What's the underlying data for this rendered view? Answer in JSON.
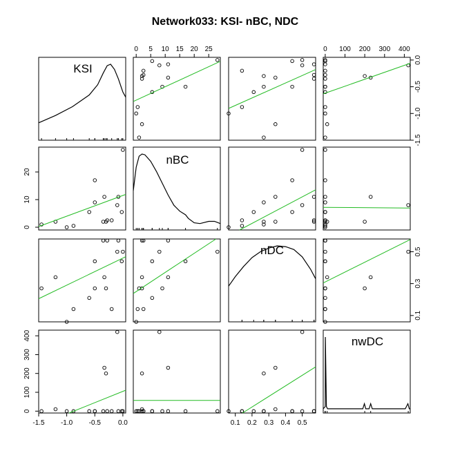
{
  "chart_data": {
    "type": "scatter",
    "subtype": "scatterplot-matrix",
    "title": "Network033: KSI- nBC, NDC",
    "variables": [
      "KSI",
      "nBC",
      "nDC",
      "nwDC"
    ],
    "ranges": {
      "KSI": [
        -1.5,
        0.05
      ],
      "nBC": [
        -1,
        29
      ],
      "nDC": [
        0.06,
        0.58
      ],
      "nwDC": [
        -10,
        430
      ]
    },
    "ticks": {
      "KSI": {
        "values": [
          -1.5,
          -1.0,
          -0.5,
          0.0
        ],
        "labels": [
          "-1.5",
          "-1.0",
          "-0.5",
          "0.0"
        ]
      },
      "nBC": {
        "values": [
          0,
          10,
          20
        ],
        "labels": [
          "0",
          "10",
          "20"
        ]
      },
      "nBC_top": {
        "values": [
          0,
          5,
          10,
          15,
          20,
          25
        ],
        "labels": [
          "0",
          "5",
          "10",
          "15",
          "20",
          "25"
        ]
      },
      "nDC": {
        "values": [
          0.1,
          0.3,
          0.5
        ],
        "labels": [
          "0.1",
          "0.3",
          "0.5"
        ]
      },
      "nDC_bottom": {
        "values": [
          0.1,
          0.2,
          0.3,
          0.4,
          0.5
        ],
        "labels": [
          "0.1",
          "0.2",
          "0.3",
          "0.4",
          "0.5"
        ]
      },
      "nwDC": {
        "values": [
          0,
          100,
          200,
          300,
          400
        ],
        "labels": [
          "0",
          "100",
          "200",
          "300",
          "400"
        ]
      },
      "KSI_right": {
        "values": [
          0.0,
          -0.5,
          -1.0,
          -1.5
        ],
        "labels": [
          "0.0",
          "-0.5",
          "-1.0",
          "-1.5"
        ]
      }
    },
    "points": {
      "KSI": [
        -1.45,
        -1.2,
        -1.0,
        -0.88,
        -0.6,
        -0.5,
        -0.5,
        -0.35,
        -0.33,
        -0.3,
        -0.28,
        -0.2,
        -0.1,
        -0.08,
        -0.02,
        0.0
      ],
      "nBC": [
        1,
        2,
        0,
        0.5,
        5.5,
        17,
        9,
        2,
        11,
        2,
        2.5,
        2.5,
        8,
        11,
        5.5,
        28
      ],
      "nDC": [
        0.27,
        0.34,
        0.06,
        0.14,
        0.21,
        0.44,
        0.27,
        0.57,
        0.34,
        0.27,
        0.57,
        0.14,
        0.5,
        0.57,
        0.44,
        0.5
      ],
      "nwDC": [
        0,
        10,
        0,
        0,
        0,
        0,
        0,
        0,
        230,
        200,
        0,
        0,
        420,
        0,
        0,
        0
      ]
    },
    "fit_lines": {
      "nBC~KSI": {
        "intercept": 11.5,
        "slope": 7.5
      },
      "nDC~KSI": {
        "intercept": 0.46,
        "slope": 0.17
      },
      "nwDC~KSI": {
        "intercept": 105,
        "slope": 120
      },
      "KSI~nBC": {
        "intercept": -0.75,
        "slope": 0.025
      },
      "nDC~nBC": {
        "intercept": 0.25,
        "slope": 0.012
      },
      "nwDC~nBC": {
        "intercept": 57,
        "slope": 0
      },
      "KSI~nDC": {
        "intercept": -0.99,
        "slope": 1.4
      },
      "nBC~nDC": {
        "intercept": -5,
        "slope": 32
      },
      "nwDC~nDC": {
        "intercept": -90,
        "slope": 560
      },
      "KSI~nwDC": {
        "intercept": -0.62,
        "slope": 0.0013
      },
      "nBC~nwDC": {
        "intercept": 7.2,
        "slope": -0.0006
      },
      "nDC~nwDC": {
        "intercept": 0.31,
        "slope": 0.00062
      }
    },
    "diagonal": {
      "KSI": {
        "label": "KSI",
        "density": [
          [
            -1.5,
            0.2
          ],
          [
            -1.2,
            0.3
          ],
          [
            -0.9,
            0.42
          ],
          [
            -0.6,
            0.58
          ],
          [
            -0.45,
            0.72
          ],
          [
            -0.35,
            0.88
          ],
          [
            -0.28,
            0.98
          ],
          [
            -0.22,
            1.0
          ],
          [
            -0.15,
            0.93
          ],
          [
            -0.08,
            0.8
          ],
          [
            0.0,
            0.62
          ],
          [
            0.05,
            0.55
          ]
        ]
      },
      "nBC": {
        "label": "nBC",
        "density": [
          [
            -1,
            0.5
          ],
          [
            0,
            0.82
          ],
          [
            1,
            0.97
          ],
          [
            2,
            1.0
          ],
          [
            3,
            0.99
          ],
          [
            5,
            0.9
          ],
          [
            7,
            0.76
          ],
          [
            9,
            0.6
          ],
          [
            11,
            0.44
          ],
          [
            13,
            0.3
          ],
          [
            15,
            0.22
          ],
          [
            17,
            0.17
          ],
          [
            18,
            0.12
          ],
          [
            20,
            0.06
          ],
          [
            22,
            0.05
          ],
          [
            25,
            0.08
          ],
          [
            27,
            0.08
          ],
          [
            29,
            0.05
          ]
        ]
      },
      "nDC": {
        "label": "nDC",
        "density": [
          [
            0.06,
            0.45
          ],
          [
            0.1,
            0.58
          ],
          [
            0.15,
            0.72
          ],
          [
            0.2,
            0.84
          ],
          [
            0.25,
            0.92
          ],
          [
            0.3,
            0.97
          ],
          [
            0.35,
            1.0
          ],
          [
            0.4,
            0.99
          ],
          [
            0.45,
            0.95
          ],
          [
            0.5,
            0.85
          ],
          [
            0.55,
            0.68
          ],
          [
            0.58,
            0.55
          ]
        ]
      },
      "nwDC": {
        "label": "nwDC",
        "density": [
          [
            -10,
            0.02
          ],
          [
            0,
            0.05
          ],
          [
            1,
            1.0
          ],
          [
            6,
            0.05
          ],
          [
            12,
            0.02
          ],
          [
            150,
            0.02
          ],
          [
            190,
            0.02
          ],
          [
            198,
            0.09
          ],
          [
            205,
            0.02
          ],
          [
            222,
            0.02
          ],
          [
            230,
            0.09
          ],
          [
            238,
            0.02
          ],
          [
            405,
            0.02
          ],
          [
            418,
            0.09
          ],
          [
            425,
            0.02
          ],
          [
            430,
            0.02
          ]
        ]
      }
    }
  }
}
